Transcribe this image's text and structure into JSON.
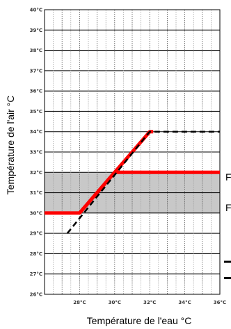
{
  "chart_data": {
    "type": "line",
    "title": "",
    "xlabel": "Température de l'eau °C",
    "ylabel": "Température de l'air °C",
    "xlim": [
      26,
      36
    ],
    "ylim": [
      26,
      40
    ],
    "x_ticks": [
      28,
      30,
      32,
      34,
      36
    ],
    "y_ticks": [
      26,
      27,
      28,
      29,
      30,
      31,
      32,
      33,
      34,
      35,
      36,
      37,
      38,
      39,
      40
    ],
    "tick_unit": "°C",
    "x_tick_labels": [
      "28°C",
      "30°C",
      "32°C",
      "34°C",
      "36°C"
    ],
    "y_tick_labels": [
      "26°C",
      "27°C",
      "28°C",
      "29°C",
      "30°C",
      "31°C",
      "32°C",
      "33°C",
      "34°C",
      "35°C",
      "36°C",
      "37°C",
      "38°C",
      "39°C",
      "40°C"
    ],
    "grid": true,
    "shaded_band": {
      "y": [
        30,
        32
      ],
      "color": "#c8c8c8"
    },
    "series": [
      {
        "style": "solid",
        "color": "#ff0000",
        "x": [
          26,
          28,
          30,
          36
        ],
        "y": [
          30,
          30,
          32,
          32
        ]
      },
      {
        "style": "solid",
        "color": "#ff0000",
        "x": [
          28,
          32,
          32.2
        ],
        "y": [
          30,
          34,
          34
        ]
      },
      {
        "style": "dashed",
        "color": "#000000",
        "x": [
          27.3,
          32,
          36
        ],
        "y": [
          29,
          34,
          34
        ]
      }
    ],
    "right_labels": [
      "F",
      "F"
    ],
    "legend": {
      "position": "right-bottom",
      "entries": [
        {
          "style": "solid",
          "color": "#000000",
          "label": ""
        },
        {
          "style": "dashed",
          "color": "#000000",
          "label": ""
        }
      ]
    }
  }
}
